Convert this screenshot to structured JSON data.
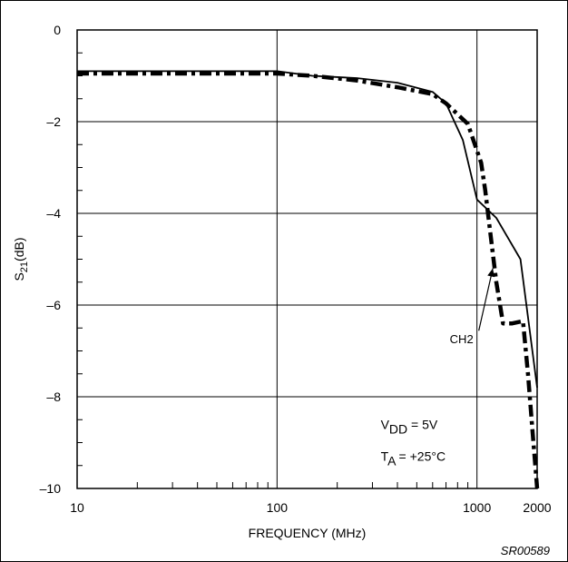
{
  "chart_data": {
    "type": "line",
    "title": "",
    "xlabel": "FREQUENCY (MHz)",
    "ylabel": {
      "main": "S",
      "sub": "21",
      "rest": "(dB)"
    },
    "xscale": "log",
    "xlim": [
      10,
      2000
    ],
    "ylim": [
      -10,
      0
    ],
    "x_ticks": [
      {
        "value": 10,
        "label": "10"
      },
      {
        "value": 100,
        "label": "100"
      },
      {
        "value": 1000,
        "label": "1000"
      },
      {
        "value": 2000,
        "label": "2000"
      }
    ],
    "y_ticks": [
      {
        "value": 0,
        "label": "0"
      },
      {
        "value": -2,
        "label": "–2"
      },
      {
        "value": -4,
        "label": "–4"
      },
      {
        "value": -6,
        "label": "–6"
      },
      {
        "value": -8,
        "label": "–8"
      },
      {
        "value": -10,
        "label": "–10"
      }
    ],
    "grid": true,
    "series": [
      {
        "style": "solid",
        "x": [
          10,
          100,
          150,
          250,
          400,
          600,
          700,
          850,
          1000,
          1250,
          1650,
          2000
        ],
        "y": [
          -0.9,
          -0.9,
          -1.0,
          -1.05,
          -1.15,
          -1.35,
          -1.6,
          -2.4,
          -3.7,
          -4.1,
          -5.0,
          -7.8
        ]
      },
      {
        "style": "dashdot",
        "x": [
          10,
          100,
          150,
          250,
          400,
          600,
          700,
          900,
          1050,
          1100,
          1150,
          1250,
          1350,
          1500,
          1700,
          1800,
          1900,
          2000
        ],
        "y": [
          -0.95,
          -0.95,
          -1.0,
          -1.1,
          -1.25,
          -1.4,
          -1.6,
          -2.05,
          -2.9,
          -3.5,
          -4.2,
          -5.5,
          -6.4,
          -6.4,
          -6.35,
          -7.5,
          -8.8,
          -10.0
        ]
      }
    ],
    "annotations": [
      {
        "text": "CH2",
        "x": 1000,
        "y": -6.4,
        "arrow_to": {
          "x": 1200,
          "y": -5.2
        }
      },
      {
        "parts": [
          {
            "text": "V"
          },
          {
            "text": "DD",
            "sub": true
          },
          {
            "text": " = 5V"
          }
        ],
        "x": 330,
        "y": -8.7
      },
      {
        "parts": [
          {
            "text": "T"
          },
          {
            "text": "A",
            "sub": true
          },
          {
            "text": " = +25°C"
          }
        ],
        "x": 330,
        "y": -9.4
      }
    ],
    "figure_code": "SR00589"
  }
}
